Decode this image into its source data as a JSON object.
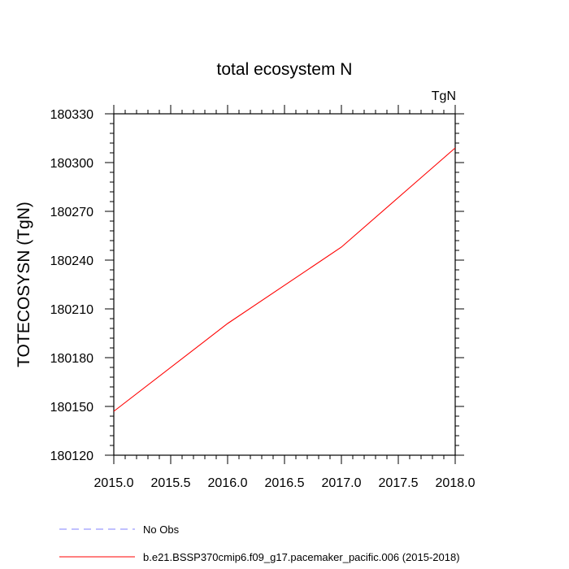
{
  "chart_data": {
    "type": "line",
    "title": "total ecosystem N",
    "units_label": "TgN",
    "ylabel": "TOTECOSYSN  (TgN)",
    "xlabel": "",
    "xlim": [
      2015.0,
      2018.0
    ],
    "ylim": [
      180120,
      180330
    ],
    "x_ticks": [
      2015.0,
      2015.5,
      2016.0,
      2016.5,
      2017.0,
      2017.5,
      2018.0
    ],
    "x_tick_labels": [
      "2015.0",
      "2015.5",
      "2016.0",
      "2016.5",
      "2017.0",
      "2017.5",
      "2018.0"
    ],
    "y_ticks": [
      180120,
      180150,
      180180,
      180210,
      180240,
      180270,
      180300,
      180330
    ],
    "y_tick_labels": [
      "180120",
      "180150",
      "180180",
      "180210",
      "180240",
      "180270",
      "180300",
      "180330"
    ],
    "grid": false,
    "legend_position": "bottom",
    "series": [
      {
        "name": "No Obs",
        "color": "#8080ff",
        "dash": "dashed",
        "x": [],
        "y": []
      },
      {
        "name": "b.e21.BSSP370cmip6.f09_g17.pacemaker_pacific.006 (2015-2018)",
        "color": "#ff0000",
        "dash": "solid",
        "x": [
          2015.0,
          2016.0,
          2017.0,
          2018.0
        ],
        "y": [
          180147,
          180201,
          180248,
          180309
        ]
      }
    ]
  }
}
